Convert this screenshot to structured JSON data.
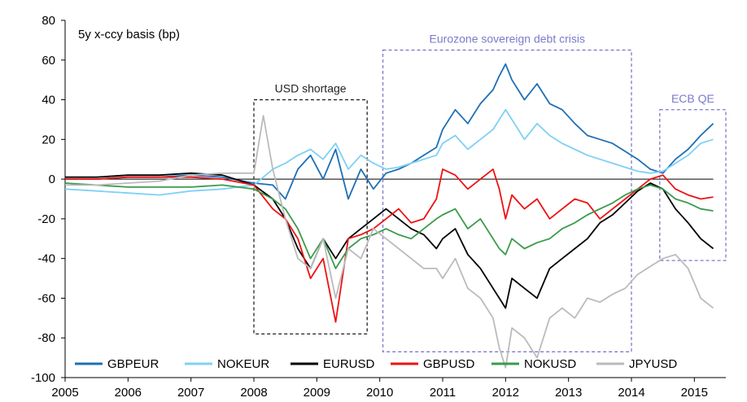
{
  "chart_data": {
    "type": "line",
    "title": "5y x-ccy basis (bp)",
    "xlabel": "",
    "ylabel": "",
    "xlim": [
      2005,
      2015.5
    ],
    "ylim": [
      -100,
      80
    ],
    "y_ticks": [
      80,
      60,
      40,
      20,
      0,
      -20,
      -40,
      -60,
      -80,
      -100
    ],
    "x_ticks": [
      "2005",
      "2006",
      "2007",
      "2008",
      "2009",
      "2010",
      "2011",
      "2012",
      "2013",
      "2014",
      "2015"
    ],
    "legend": "bottom",
    "series": [
      {
        "name": "GBPEUR",
        "color": "#1f6fb5",
        "x": [
          2005,
          2005.5,
          2006,
          2006.5,
          2007,
          2007.5,
          2008,
          2008.3,
          2008.5,
          2008.7,
          2008.9,
          2009.1,
          2009.3,
          2009.5,
          2009.7,
          2009.9,
          2010.1,
          2010.3,
          2010.5,
          2010.7,
          2010.9,
          2011,
          2011.2,
          2011.4,
          2011.6,
          2011.8,
          2011.9,
          2012,
          2012.1,
          2012.3,
          2012.5,
          2012.7,
          2012.9,
          2013.1,
          2013.3,
          2013.5,
          2013.7,
          2013.9,
          2014.1,
          2014.3,
          2014.5,
          2014.7,
          2014.9,
          2015.1,
          2015.3
        ],
        "y": [
          0,
          0,
          1,
          1,
          2,
          1,
          -2,
          -3,
          -10,
          5,
          12,
          0,
          15,
          -10,
          5,
          -5,
          3,
          5,
          8,
          12,
          16,
          25,
          35,
          28,
          38,
          45,
          52,
          58,
          50,
          40,
          48,
          38,
          35,
          28,
          22,
          20,
          18,
          14,
          10,
          5,
          3,
          10,
          15,
          22,
          28
        ]
      },
      {
        "name": "NOKEUR",
        "color": "#7fd0f5",
        "x": [
          2005,
          2005.5,
          2006,
          2006.5,
          2007,
          2007.5,
          2008,
          2008.3,
          2008.5,
          2008.7,
          2008.9,
          2009.1,
          2009.3,
          2009.5,
          2009.7,
          2009.9,
          2010.1,
          2010.3,
          2010.5,
          2010.7,
          2010.9,
          2011,
          2011.2,
          2011.4,
          2011.6,
          2011.8,
          2011.9,
          2012,
          2012.1,
          2012.3,
          2012.5,
          2012.7,
          2012.9,
          2013.1,
          2013.3,
          2013.5,
          2013.7,
          2013.9,
          2014.1,
          2014.3,
          2014.5,
          2014.7,
          2014.9,
          2015.1,
          2015.3
        ],
        "y": [
          -5,
          -6,
          -7,
          -8,
          -6,
          -5,
          -3,
          5,
          8,
          12,
          15,
          10,
          18,
          5,
          12,
          8,
          5,
          6,
          8,
          10,
          12,
          18,
          22,
          15,
          20,
          25,
          30,
          35,
          30,
          20,
          28,
          22,
          18,
          15,
          12,
          10,
          8,
          6,
          4,
          3,
          4,
          8,
          12,
          18,
          20
        ]
      },
      {
        "name": "EURUSD",
        "color": "#000000",
        "x": [
          2005,
          2005.5,
          2006,
          2006.5,
          2007,
          2007.5,
          2008,
          2008.3,
          2008.5,
          2008.7,
          2008.9,
          2009.1,
          2009.3,
          2009.5,
          2009.7,
          2009.9,
          2010.1,
          2010.3,
          2010.5,
          2010.7,
          2010.9,
          2011,
          2011.2,
          2011.4,
          2011.6,
          2011.8,
          2011.9,
          2012,
          2012.1,
          2012.3,
          2012.5,
          2012.7,
          2012.9,
          2013.1,
          2013.3,
          2013.5,
          2013.7,
          2013.9,
          2014.1,
          2014.3,
          2014.5,
          2014.7,
          2014.9,
          2015.1,
          2015.3
        ],
        "y": [
          1,
          1,
          2,
          2,
          3,
          2,
          -3,
          -10,
          -20,
          -35,
          -45,
          -30,
          -40,
          -30,
          -25,
          -20,
          -15,
          -20,
          -25,
          -28,
          -35,
          -30,
          -25,
          -38,
          -45,
          -55,
          -60,
          -65,
          -50,
          -55,
          -60,
          -45,
          -40,
          -35,
          -30,
          -22,
          -18,
          -12,
          -6,
          -2,
          -5,
          -15,
          -22,
          -30,
          -35
        ]
      },
      {
        "name": "GBPUSD",
        "color": "#ee1111",
        "x": [
          2005,
          2005.5,
          2006,
          2006.5,
          2007,
          2007.5,
          2008,
          2008.3,
          2008.5,
          2008.7,
          2008.9,
          2009.1,
          2009.3,
          2009.5,
          2009.7,
          2009.9,
          2010.1,
          2010.3,
          2010.5,
          2010.7,
          2010.9,
          2011,
          2011.2,
          2011.4,
          2011.6,
          2011.8,
          2011.9,
          2012,
          2012.1,
          2012.3,
          2012.5,
          2012.7,
          2012.9,
          2013.1,
          2013.3,
          2013.5,
          2013.7,
          2013.9,
          2014.1,
          2014.3,
          2014.5,
          2014.7,
          2014.9,
          2015.1,
          2015.3
        ],
        "y": [
          0,
          0,
          1,
          1,
          1,
          0,
          -3,
          -15,
          -20,
          -30,
          -50,
          -40,
          -72,
          -30,
          -28,
          -25,
          -20,
          -15,
          -22,
          -20,
          -10,
          5,
          2,
          -5,
          0,
          5,
          -5,
          -20,
          -8,
          -15,
          -10,
          -20,
          -15,
          -10,
          -12,
          -20,
          -15,
          -10,
          -5,
          0,
          2,
          -5,
          -8,
          -10,
          -9
        ]
      },
      {
        "name": "NOKUSD",
        "color": "#3a9b4b",
        "x": [
          2005,
          2005.5,
          2006,
          2006.5,
          2007,
          2007.5,
          2008,
          2008.3,
          2008.5,
          2008.7,
          2008.9,
          2009.1,
          2009.3,
          2009.5,
          2009.7,
          2009.9,
          2010.1,
          2010.3,
          2010.5,
          2010.7,
          2010.9,
          2011,
          2011.2,
          2011.4,
          2011.6,
          2011.8,
          2011.9,
          2012,
          2012.1,
          2012.3,
          2012.5,
          2012.7,
          2012.9,
          2013.1,
          2013.3,
          2013.5,
          2013.7,
          2013.9,
          2014.1,
          2014.3,
          2014.5,
          2014.7,
          2014.9,
          2015.1,
          2015.3
        ],
        "y": [
          -2,
          -3,
          -4,
          -4,
          -4,
          -3,
          -5,
          -10,
          -15,
          -25,
          -40,
          -30,
          -45,
          -35,
          -30,
          -28,
          -25,
          -28,
          -30,
          -25,
          -20,
          -18,
          -15,
          -25,
          -20,
          -30,
          -35,
          -38,
          -30,
          -35,
          -32,
          -30,
          -25,
          -22,
          -18,
          -15,
          -12,
          -8,
          -5,
          -3,
          -5,
          -10,
          -12,
          -15,
          -16
        ]
      },
      {
        "name": "JPYUSD",
        "color": "#bbbbbb",
        "x": [
          2005,
          2005.5,
          2006,
          2006.5,
          2007,
          2007.5,
          2008,
          2008.15,
          2008.3,
          2008.5,
          2008.7,
          2008.9,
          2009.1,
          2009.3,
          2009.5,
          2009.7,
          2009.9,
          2010.1,
          2010.3,
          2010.5,
          2010.7,
          2010.9,
          2011,
          2011.2,
          2011.4,
          2011.6,
          2011.8,
          2011.9,
          2012,
          2012.1,
          2012.3,
          2012.5,
          2012.7,
          2012.9,
          2013.1,
          2013.3,
          2013.5,
          2013.7,
          2013.9,
          2014.1,
          2014.3,
          2014.5,
          2014.7,
          2014.9,
          2015.1,
          2015.3
        ],
        "y": [
          -3,
          -3,
          -2,
          -1,
          2,
          3,
          3,
          32,
          5,
          -20,
          -40,
          -45,
          -30,
          -60,
          -35,
          -40,
          -25,
          -30,
          -35,
          -40,
          -45,
          -45,
          -50,
          -40,
          -55,
          -60,
          -70,
          -85,
          -95,
          -75,
          -80,
          -90,
          -70,
          -65,
          -70,
          -60,
          -62,
          -58,
          -55,
          -48,
          -44,
          -40,
          -38,
          -45,
          -60,
          -65
        ]
      }
    ],
    "annotations": [
      {
        "text": "USD shortage",
        "x0": 2008,
        "x1": 2009.8,
        "y0": -78,
        "y1": 40,
        "color": "#222222"
      },
      {
        "text": "Eurozone sovereign debt crisis",
        "x0": 2010.05,
        "x1": 2014,
        "y0": -87,
        "y1": 65,
        "color": "#7b7bcc"
      },
      {
        "text": "ECB  QE",
        "x0": 2014.45,
        "x1": 2015.5,
        "y0": -41,
        "y1": 35,
        "color": "#7b7bcc"
      }
    ]
  }
}
